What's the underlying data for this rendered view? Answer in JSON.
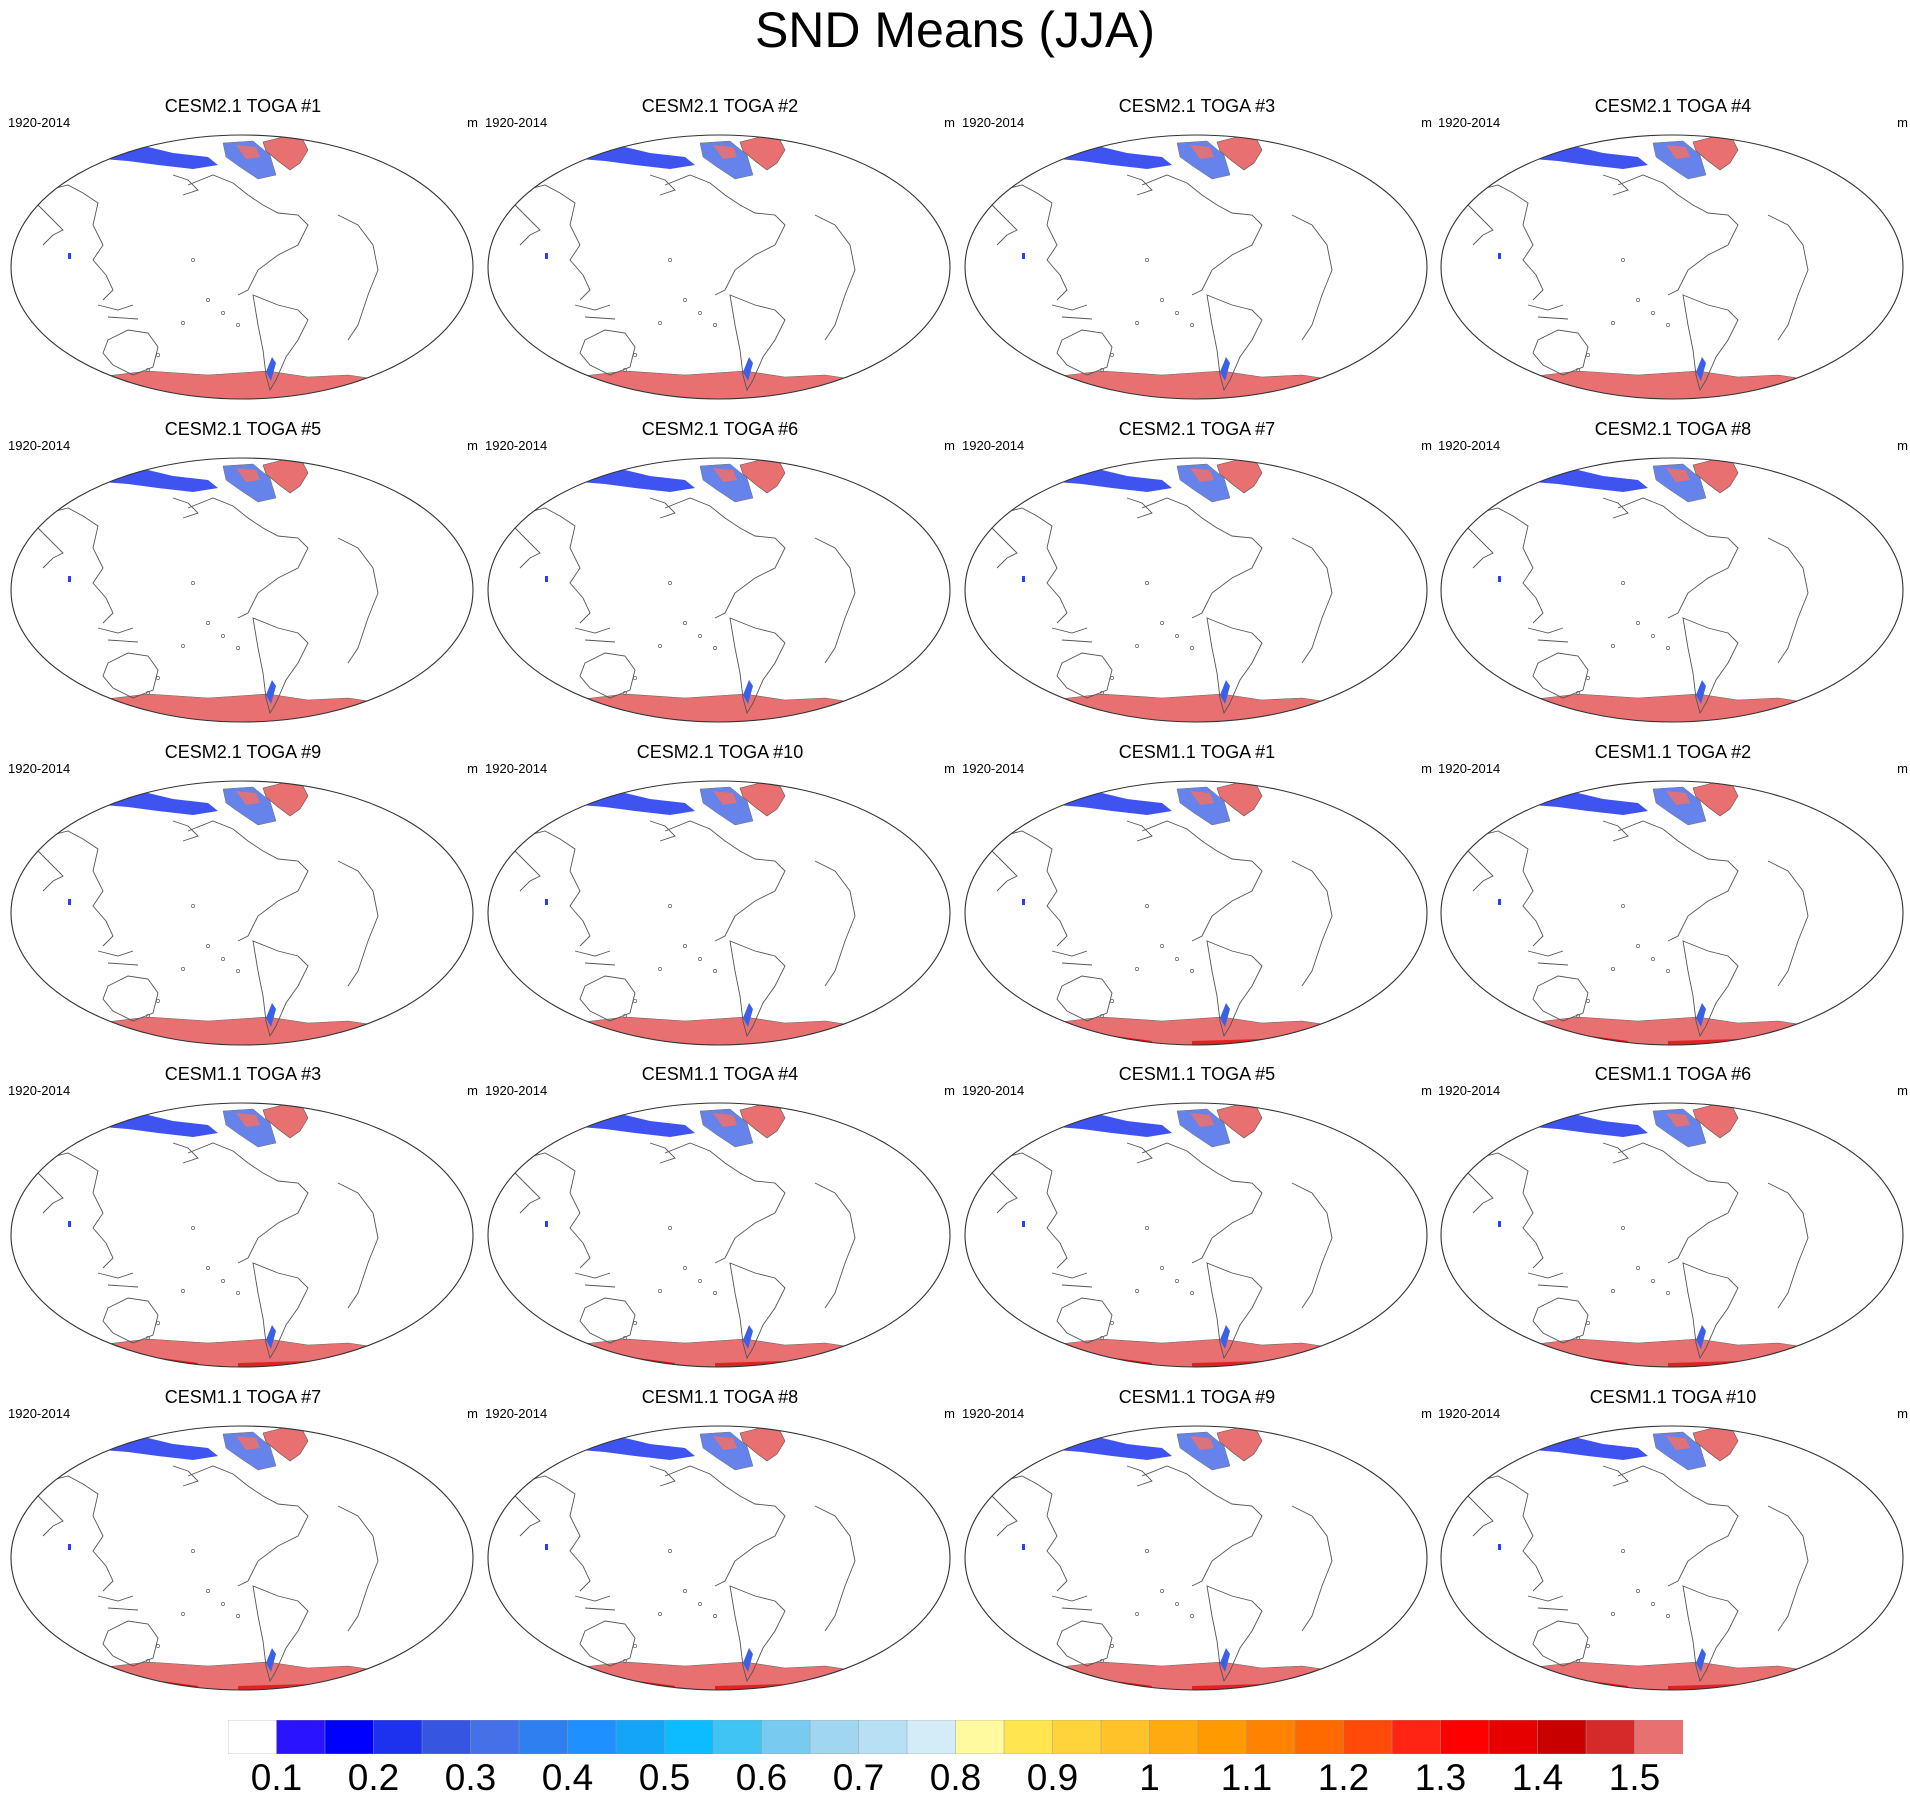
{
  "title": "SND Means (JJA)",
  "period_label": "1920-2014",
  "units_label": "m",
  "panels": [
    {
      "title": "CESM2.1 TOGA #1",
      "model": "CESM2.1"
    },
    {
      "title": "CESM2.1 TOGA #2",
      "model": "CESM2.1"
    },
    {
      "title": "CESM2.1 TOGA #3",
      "model": "CESM2.1"
    },
    {
      "title": "CESM2.1 TOGA #4",
      "model": "CESM2.1"
    },
    {
      "title": "CESM2.1 TOGA #5",
      "model": "CESM2.1"
    },
    {
      "title": "CESM2.1 TOGA #6",
      "model": "CESM2.1"
    },
    {
      "title": "CESM2.1 TOGA #7",
      "model": "CESM2.1"
    },
    {
      "title": "CESM2.1 TOGA #8",
      "model": "CESM2.1"
    },
    {
      "title": "CESM2.1 TOGA #9",
      "model": "CESM2.1"
    },
    {
      "title": "CESM2.1 TOGA #10",
      "model": "CESM2.1"
    },
    {
      "title": "CESM1.1 TOGA #1",
      "model": "CESM1.1"
    },
    {
      "title": "CESM1.1 TOGA #2",
      "model": "CESM1.1"
    },
    {
      "title": "CESM1.1 TOGA #3",
      "model": "CESM1.1"
    },
    {
      "title": "CESM1.1 TOGA #4",
      "model": "CESM1.1"
    },
    {
      "title": "CESM1.1 TOGA #5",
      "model": "CESM1.1"
    },
    {
      "title": "CESM1.1 TOGA #6",
      "model": "CESM1.1"
    },
    {
      "title": "CESM1.1 TOGA #7",
      "model": "CESM1.1"
    },
    {
      "title": "CESM1.1 TOGA #8",
      "model": "CESM1.1"
    },
    {
      "title": "CESM1.1 TOGA #9",
      "model": "CESM1.1"
    },
    {
      "title": "CESM1.1 TOGA #10",
      "model": "CESM1.1"
    }
  ],
  "colorbar": {
    "labels": [
      "0.1",
      "0.2",
      "0.3",
      "0.4",
      "0.5",
      "0.6",
      "0.7",
      "0.8",
      "0.9",
      "1",
      "1.1",
      "1.2",
      "1.3",
      "1.4",
      "1.5"
    ],
    "colors": [
      "#ffffff",
      "#2a14ff",
      "#0000ff",
      "#1c32ee",
      "#3656e2",
      "#4470e8",
      "#2e7ff0",
      "#1e90ff",
      "#14a4f8",
      "#0cbcff",
      "#40c4f4",
      "#78caf0",
      "#a0d6f0",
      "#b8e0f4",
      "#d4ecf8",
      "#fffaa0",
      "#ffe650",
      "#ffd43a",
      "#ffc228",
      "#ffaa10",
      "#ff9a00",
      "#ff8200",
      "#ff6a00",
      "#ff4a0a",
      "#ff2414",
      "#ff0000",
      "#e60000",
      "#c80000",
      "#d42a2a",
      "#e87070"
    ]
  },
  "fill_colors": {
    "antarctica": "#e87070",
    "antarctica_dark_cesm11": "#dc1010",
    "greenland": "#e87070",
    "low_snow": "#2a40f0"
  }
}
